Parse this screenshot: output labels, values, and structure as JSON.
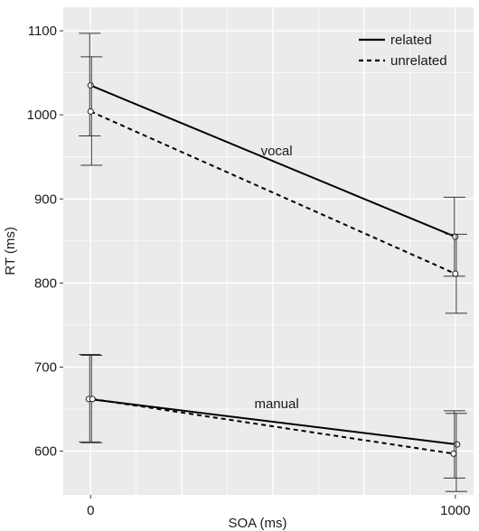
{
  "chart_data": {
    "type": "line",
    "title": "",
    "xlabel": "SOA (ms)",
    "ylabel": "RT (ms)",
    "x": [
      0,
      1000
    ],
    "x_ticks": [
      "0",
      "1000"
    ],
    "xlim": [
      -75,
      1050
    ],
    "ylim": [
      548,
      1128
    ],
    "y_ticks": [
      600,
      700,
      800,
      900,
      1000,
      1100
    ],
    "y_tick_labels": [
      "600",
      "700",
      "800",
      "900",
      "1000",
      "1100"
    ],
    "grid": true,
    "legend_position": "top-right",
    "series": [
      {
        "name": "related",
        "linestyle": "solid",
        "group": "vocal",
        "values": [
          1035,
          855
        ],
        "errors": [
          [
            975,
            1097
          ],
          [
            808,
            902
          ]
        ]
      },
      {
        "name": "unrelated",
        "linestyle": "dashed",
        "group": "vocal",
        "values": [
          1004,
          811
        ],
        "errors": [
          [
            940,
            1069
          ],
          [
            764,
            858
          ]
        ]
      },
      {
        "name": "related",
        "linestyle": "solid",
        "group": "manual",
        "values": [
          662,
          608
        ],
        "errors": [
          [
            611,
            715
          ],
          [
            568,
            648
          ]
        ]
      },
      {
        "name": "unrelated",
        "linestyle": "dashed",
        "group": "manual",
        "values": [
          662,
          597
        ],
        "errors": [
          [
            610,
            714
          ],
          [
            552,
            645
          ]
        ]
      }
    ],
    "annotations": [
      {
        "text": "vocal",
        "x": 510,
        "y": 952
      },
      {
        "text": "manual",
        "x": 510,
        "y": 651
      }
    ],
    "colors": {
      "panel": "#ebebeb",
      "grid": "#ffffff",
      "line": "#000000",
      "marker_fill": "#ffffff"
    }
  }
}
